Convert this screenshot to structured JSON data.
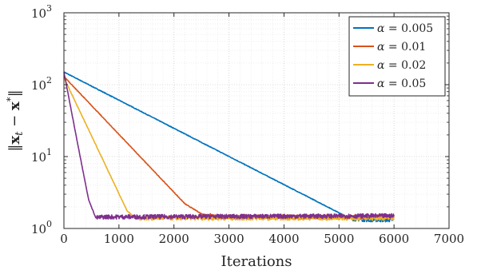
{
  "chart_data": {
    "type": "line",
    "xlabel": "Iterations",
    "ylabel": "‖x_t − x*‖",
    "xlim": [
      0,
      7000
    ],
    "ylim": [
      1,
      1000
    ],
    "yscale": "log",
    "grid": true,
    "minor_grid": true,
    "legend_position": "top-right",
    "x_ticks": [
      "0",
      "1000",
      "2000",
      "3000",
      "4000",
      "5000",
      "6000",
      "7000"
    ],
    "y_ticks": [
      {
        "value": 1,
        "base": "10",
        "exp": "0"
      },
      {
        "value": 10,
        "base": "10",
        "exp": "1"
      },
      {
        "value": 100,
        "base": "10",
        "exp": "2"
      },
      {
        "value": 1000,
        "base": "10",
        "exp": "3"
      }
    ],
    "series": [
      {
        "name": "α = 0.005",
        "alpha_symbol": "α",
        "alpha_value": "= 0.005",
        "color": "#0072BD",
        "x": [
          0,
          5200,
          5500,
          6000
        ],
        "y": [
          150,
          1.38,
          1.33,
          1.32
        ],
        "noise_from": 5200
      },
      {
        "name": "α = 0.01",
        "alpha_symbol": "α",
        "alpha_value": "= 0.01",
        "color": "#D95319",
        "x": [
          0,
          2200,
          2500,
          2800,
          6000
        ],
        "y": [
          130,
          2.2,
          1.6,
          1.45,
          1.45
        ],
        "noise_from": 2600
      },
      {
        "name": "α = 0.02",
        "alpha_symbol": "α",
        "alpha_value": "= 0.02",
        "color": "#EDB120",
        "x": [
          0,
          1150,
          1300,
          6000
        ],
        "y": [
          125,
          1.75,
          1.4,
          1.4
        ],
        "noise_from": 1250
      },
      {
        "name": "α = 0.05",
        "alpha_symbol": "α",
        "alpha_value": "= 0.05",
        "color": "#7E2F8E",
        "x": [
          0,
          250,
          450,
          580,
          700,
          6000
        ],
        "y": [
          150,
          15,
          2.5,
          1.4,
          1.45,
          1.5
        ],
        "noise_from": 600
      }
    ]
  }
}
